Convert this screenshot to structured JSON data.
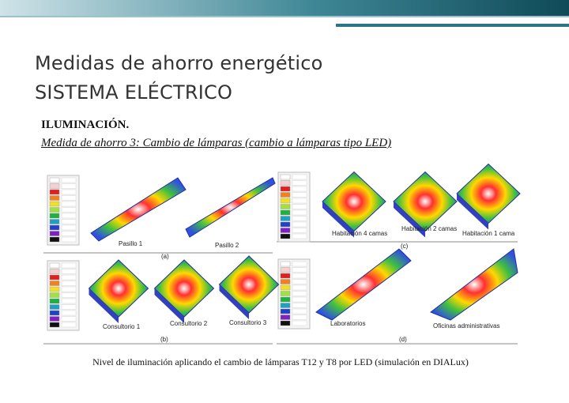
{
  "header": {
    "title_line1": "Medidas de ahorro energético",
    "title_line2": "SISTEMA ELÉCTRICO"
  },
  "section": "ILUMINACIÓN.",
  "subtitle": "Medida de ahorro 3: Cambio de lámparas (cambio a lámparas tipo LED)",
  "figure": {
    "labels": [
      "Pasillo 1",
      "Pasillo 2",
      "(a)",
      "Habitación 4 camas",
      "Habitación 2 camas",
      "Habitación 1 cama",
      "(c)",
      "Consultorio 1",
      "Consultorio 2",
      "Consultorio 3",
      "(b)",
      "Laboratorios",
      "Oficinas administrativas",
      "(d)"
    ],
    "caption": "Nivel de iluminación aplicando el cambio de lámparas T12 y T8 por LED (simulación en DIALux)"
  }
}
